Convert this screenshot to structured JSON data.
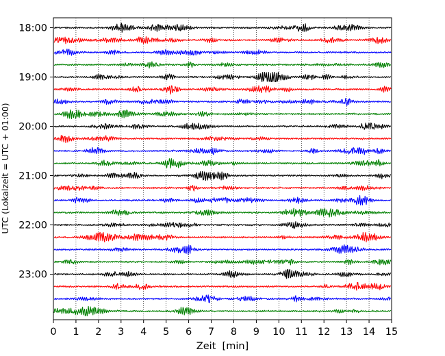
{
  "chart_data": {
    "type": "line",
    "title": "",
    "xlabel": "Zeit  [min]",
    "ylabel": "UTC (Lokalzeit = UTC + 01:00)",
    "xlim": [
      0,
      15
    ],
    "xticks": [
      0,
      1,
      2,
      3,
      4,
      5,
      6,
      7,
      8,
      9,
      10,
      11,
      12,
      13,
      14,
      15
    ],
    "xtick_labels": [
      "0",
      "1",
      "2",
      "3",
      "4",
      "5",
      "6",
      "7",
      "8",
      "9",
      "10",
      "11",
      "12",
      "13",
      "14",
      "15"
    ],
    "ytick_labels": [
      "18:00",
      "19:00",
      "20:00",
      "21:00",
      "22:00",
      "23:00"
    ],
    "trace_minutes": 15,
    "trace_start": "18:00",
    "trace_count": 24,
    "trace_colors": [
      "#000000",
      "#ff0000",
      "#0000ff",
      "#008000"
    ],
    "vertical_grid": "dotted",
    "legend": "none",
    "series": [
      {
        "start": "18:00",
        "color": "#000000"
      },
      {
        "start": "18:15",
        "color": "#ff0000"
      },
      {
        "start": "18:30",
        "color": "#0000ff"
      },
      {
        "start": "18:45",
        "color": "#008000"
      },
      {
        "start": "19:00",
        "color": "#000000"
      },
      {
        "start": "19:15",
        "color": "#ff0000"
      },
      {
        "start": "19:30",
        "color": "#0000ff"
      },
      {
        "start": "19:45",
        "color": "#008000"
      },
      {
        "start": "20:00",
        "color": "#000000"
      },
      {
        "start": "20:15",
        "color": "#ff0000"
      },
      {
        "start": "20:30",
        "color": "#0000ff"
      },
      {
        "start": "20:45",
        "color": "#008000"
      },
      {
        "start": "21:00",
        "color": "#000000"
      },
      {
        "start": "21:15",
        "color": "#ff0000"
      },
      {
        "start": "21:30",
        "color": "#0000ff"
      },
      {
        "start": "21:45",
        "color": "#008000"
      },
      {
        "start": "22:00",
        "color": "#000000"
      },
      {
        "start": "22:15",
        "color": "#ff0000"
      },
      {
        "start": "22:30",
        "color": "#0000ff"
      },
      {
        "start": "22:45",
        "color": "#008000"
      },
      {
        "start": "23:00",
        "color": "#000000"
      },
      {
        "start": "23:15",
        "color": "#ff0000"
      },
      {
        "start": "23:30",
        "color": "#0000ff"
      },
      {
        "start": "23:45",
        "color": "#008000"
      }
    ]
  }
}
